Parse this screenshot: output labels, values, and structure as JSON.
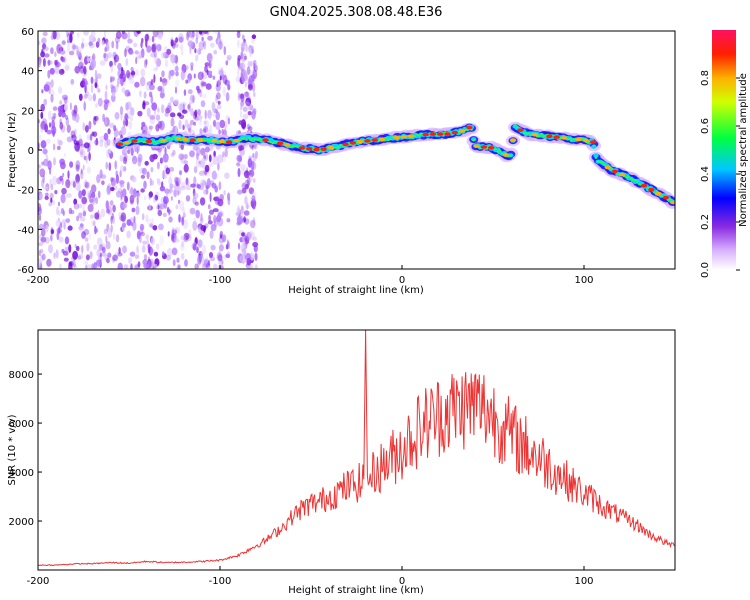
{
  "title": "GN04.2025.308.08.48.E36",
  "chart_data": [
    {
      "type": "heatmap",
      "name": "spectrogram",
      "xlabel": "Height of straight line (km)",
      "ylabel": "Frequency (Hz)",
      "xlim": [
        -200,
        150
      ],
      "ylim": [
        -60,
        60
      ],
      "xticks": [
        -200,
        -100,
        0,
        100
      ],
      "yticks": [
        60,
        40,
        20,
        0,
        -20,
        -40,
        -60
      ],
      "colorbar": {
        "label": "Normalized spectral amplitude",
        "range": [
          0,
          1
        ],
        "ticks": [
          0.0,
          0.2,
          0.4,
          0.6,
          0.8
        ]
      },
      "ridge": {
        "x": [
          -155,
          -145,
          -135,
          -125,
          -115,
          -105,
          -95,
          -85,
          -75,
          -65,
          -55,
          -45,
          -35,
          -25,
          -15,
          -5,
          5,
          15,
          25,
          35,
          38,
          40,
          50,
          58,
          60,
          62,
          65,
          70,
          80,
          90,
          100,
          105,
          107,
          115,
          125,
          135,
          145,
          150
        ],
        "y": [
          3,
          5,
          4,
          6,
          5,
          5,
          4,
          6,
          5,
          3,
          1,
          0,
          2,
          4,
          5,
          6,
          7,
          8,
          8,
          10,
          12,
          2,
          1,
          -3,
          -2,
          12,
          10,
          8,
          7,
          6,
          5,
          4,
          -5,
          -10,
          -14,
          -19,
          -24,
          -27
        ]
      }
    },
    {
      "type": "line",
      "name": "snr",
      "xlabel": "Height of straight line (km)",
      "ylabel": "SNR (10 * v/v)",
      "xlim": [
        -200,
        150
      ],
      "ylim": [
        0,
        9800
      ],
      "xticks": [
        -200,
        -100,
        0,
        100
      ],
      "yticks": [
        2000,
        4000,
        6000,
        8000
      ],
      "color": "#ee3333",
      "series": [
        {
          "name": "SNR",
          "x": [
            -200,
            -190,
            -180,
            -170,
            -160,
            -150,
            -140,
            -130,
            -120,
            -110,
            -100,
            -95,
            -90,
            -85,
            -80,
            -75,
            -70,
            -65,
            -60,
            -55,
            -50,
            -45,
            -40,
            -35,
            -30,
            -25,
            -21,
            -20,
            -19,
            -15,
            -10,
            -5,
            0,
            5,
            10,
            15,
            20,
            25,
            30,
            35,
            40,
            45,
            50,
            55,
            60,
            65,
            70,
            75,
            80,
            85,
            90,
            95,
            100,
            105,
            110,
            115,
            120,
            125,
            130,
            135,
            140,
            145,
            150
          ],
          "y": [
            200,
            200,
            250,
            260,
            300,
            280,
            350,
            300,
            320,
            350,
            400,
            500,
            600,
            800,
            1000,
            1200,
            1500,
            1800,
            2200,
            2500,
            2700,
            2800,
            3000,
            3200,
            3400,
            3500,
            3700,
            9800,
            3700,
            4000,
            4300,
            4600,
            5000,
            5400,
            5800,
            6100,
            6300,
            6500,
            6600,
            6700,
            6800,
            6600,
            6300,
            5900,
            5500,
            5200,
            4900,
            4600,
            4300,
            4000,
            3700,
            3400,
            3100,
            2900,
            2600,
            2400,
            2200,
            2000,
            1800,
            1500,
            1300,
            1100,
            1000
          ]
        }
      ]
    }
  ]
}
